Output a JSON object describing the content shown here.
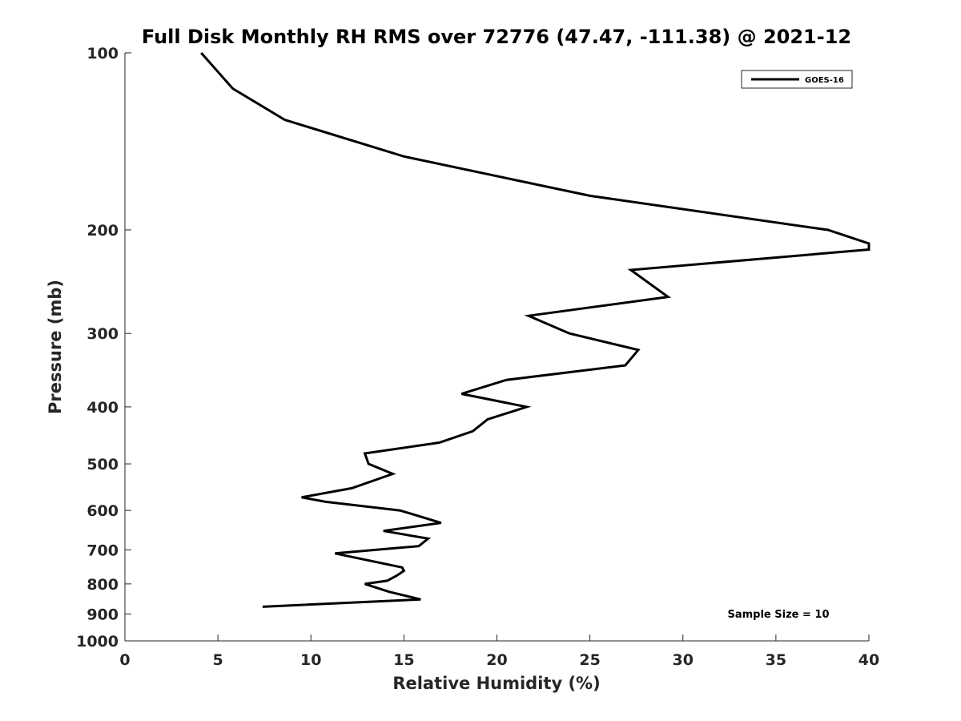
{
  "chart_data": {
    "type": "line",
    "title": "Full Disk Monthly RH RMS over 72776 (47.47, -111.38) @ 2021-12",
    "xlabel": "Relative Humidity (%)",
    "ylabel": "Pressure (mb)",
    "xlim": [
      0,
      40
    ],
    "ylim": [
      100,
      1000
    ],
    "y_scale": "log",
    "y_reversed": true,
    "x_ticks": [
      0,
      5,
      10,
      15,
      20,
      25,
      30,
      35,
      40
    ],
    "y_ticks": [
      100,
      200,
      300,
      400,
      500,
      600,
      700,
      800,
      900,
      1000
    ],
    "grid": false,
    "legend_position": "top-right",
    "annotation": "Sample Size = 10",
    "series": [
      {
        "name": "GOES-16",
        "color": "#000000",
        "points": [
          {
            "x": 4.1,
            "y": 100
          },
          {
            "x": 5.8,
            "y": 115
          },
          {
            "x": 8.6,
            "y": 130
          },
          {
            "x": 15.0,
            "y": 150
          },
          {
            "x": 25.0,
            "y": 175
          },
          {
            "x": 37.8,
            "y": 200
          },
          {
            "x": 40.0,
            "y": 211
          },
          {
            "x": 40.0,
            "y": 216
          },
          {
            "x": 27.2,
            "y": 234
          },
          {
            "x": 29.2,
            "y": 260
          },
          {
            "x": 21.7,
            "y": 280
          },
          {
            "x": 23.9,
            "y": 300
          },
          {
            "x": 27.6,
            "y": 320
          },
          {
            "x": 26.9,
            "y": 340
          },
          {
            "x": 20.5,
            "y": 360
          },
          {
            "x": 18.1,
            "y": 380
          },
          {
            "x": 21.6,
            "y": 400
          },
          {
            "x": 19.5,
            "y": 420
          },
          {
            "x": 18.7,
            "y": 440
          },
          {
            "x": 16.9,
            "y": 460
          },
          {
            "x": 12.9,
            "y": 480
          },
          {
            "x": 13.1,
            "y": 500
          },
          {
            "x": 14.4,
            "y": 520
          },
          {
            "x": 12.2,
            "y": 550
          },
          {
            "x": 9.5,
            "y": 570
          },
          {
            "x": 10.8,
            "y": 580
          },
          {
            "x": 14.8,
            "y": 600
          },
          {
            "x": 17.0,
            "y": 630
          },
          {
            "x": 13.9,
            "y": 650
          },
          {
            "x": 16.3,
            "y": 670
          },
          {
            "x": 15.8,
            "y": 690
          },
          {
            "x": 11.3,
            "y": 710
          },
          {
            "x": 14.9,
            "y": 750
          },
          {
            "x": 15.0,
            "y": 760
          },
          {
            "x": 14.6,
            "y": 775
          },
          {
            "x": 14.1,
            "y": 790
          },
          {
            "x": 12.9,
            "y": 800
          },
          {
            "x": 14.2,
            "y": 825
          },
          {
            "x": 15.9,
            "y": 850
          },
          {
            "x": 7.4,
            "y": 875
          }
        ]
      }
    ]
  }
}
